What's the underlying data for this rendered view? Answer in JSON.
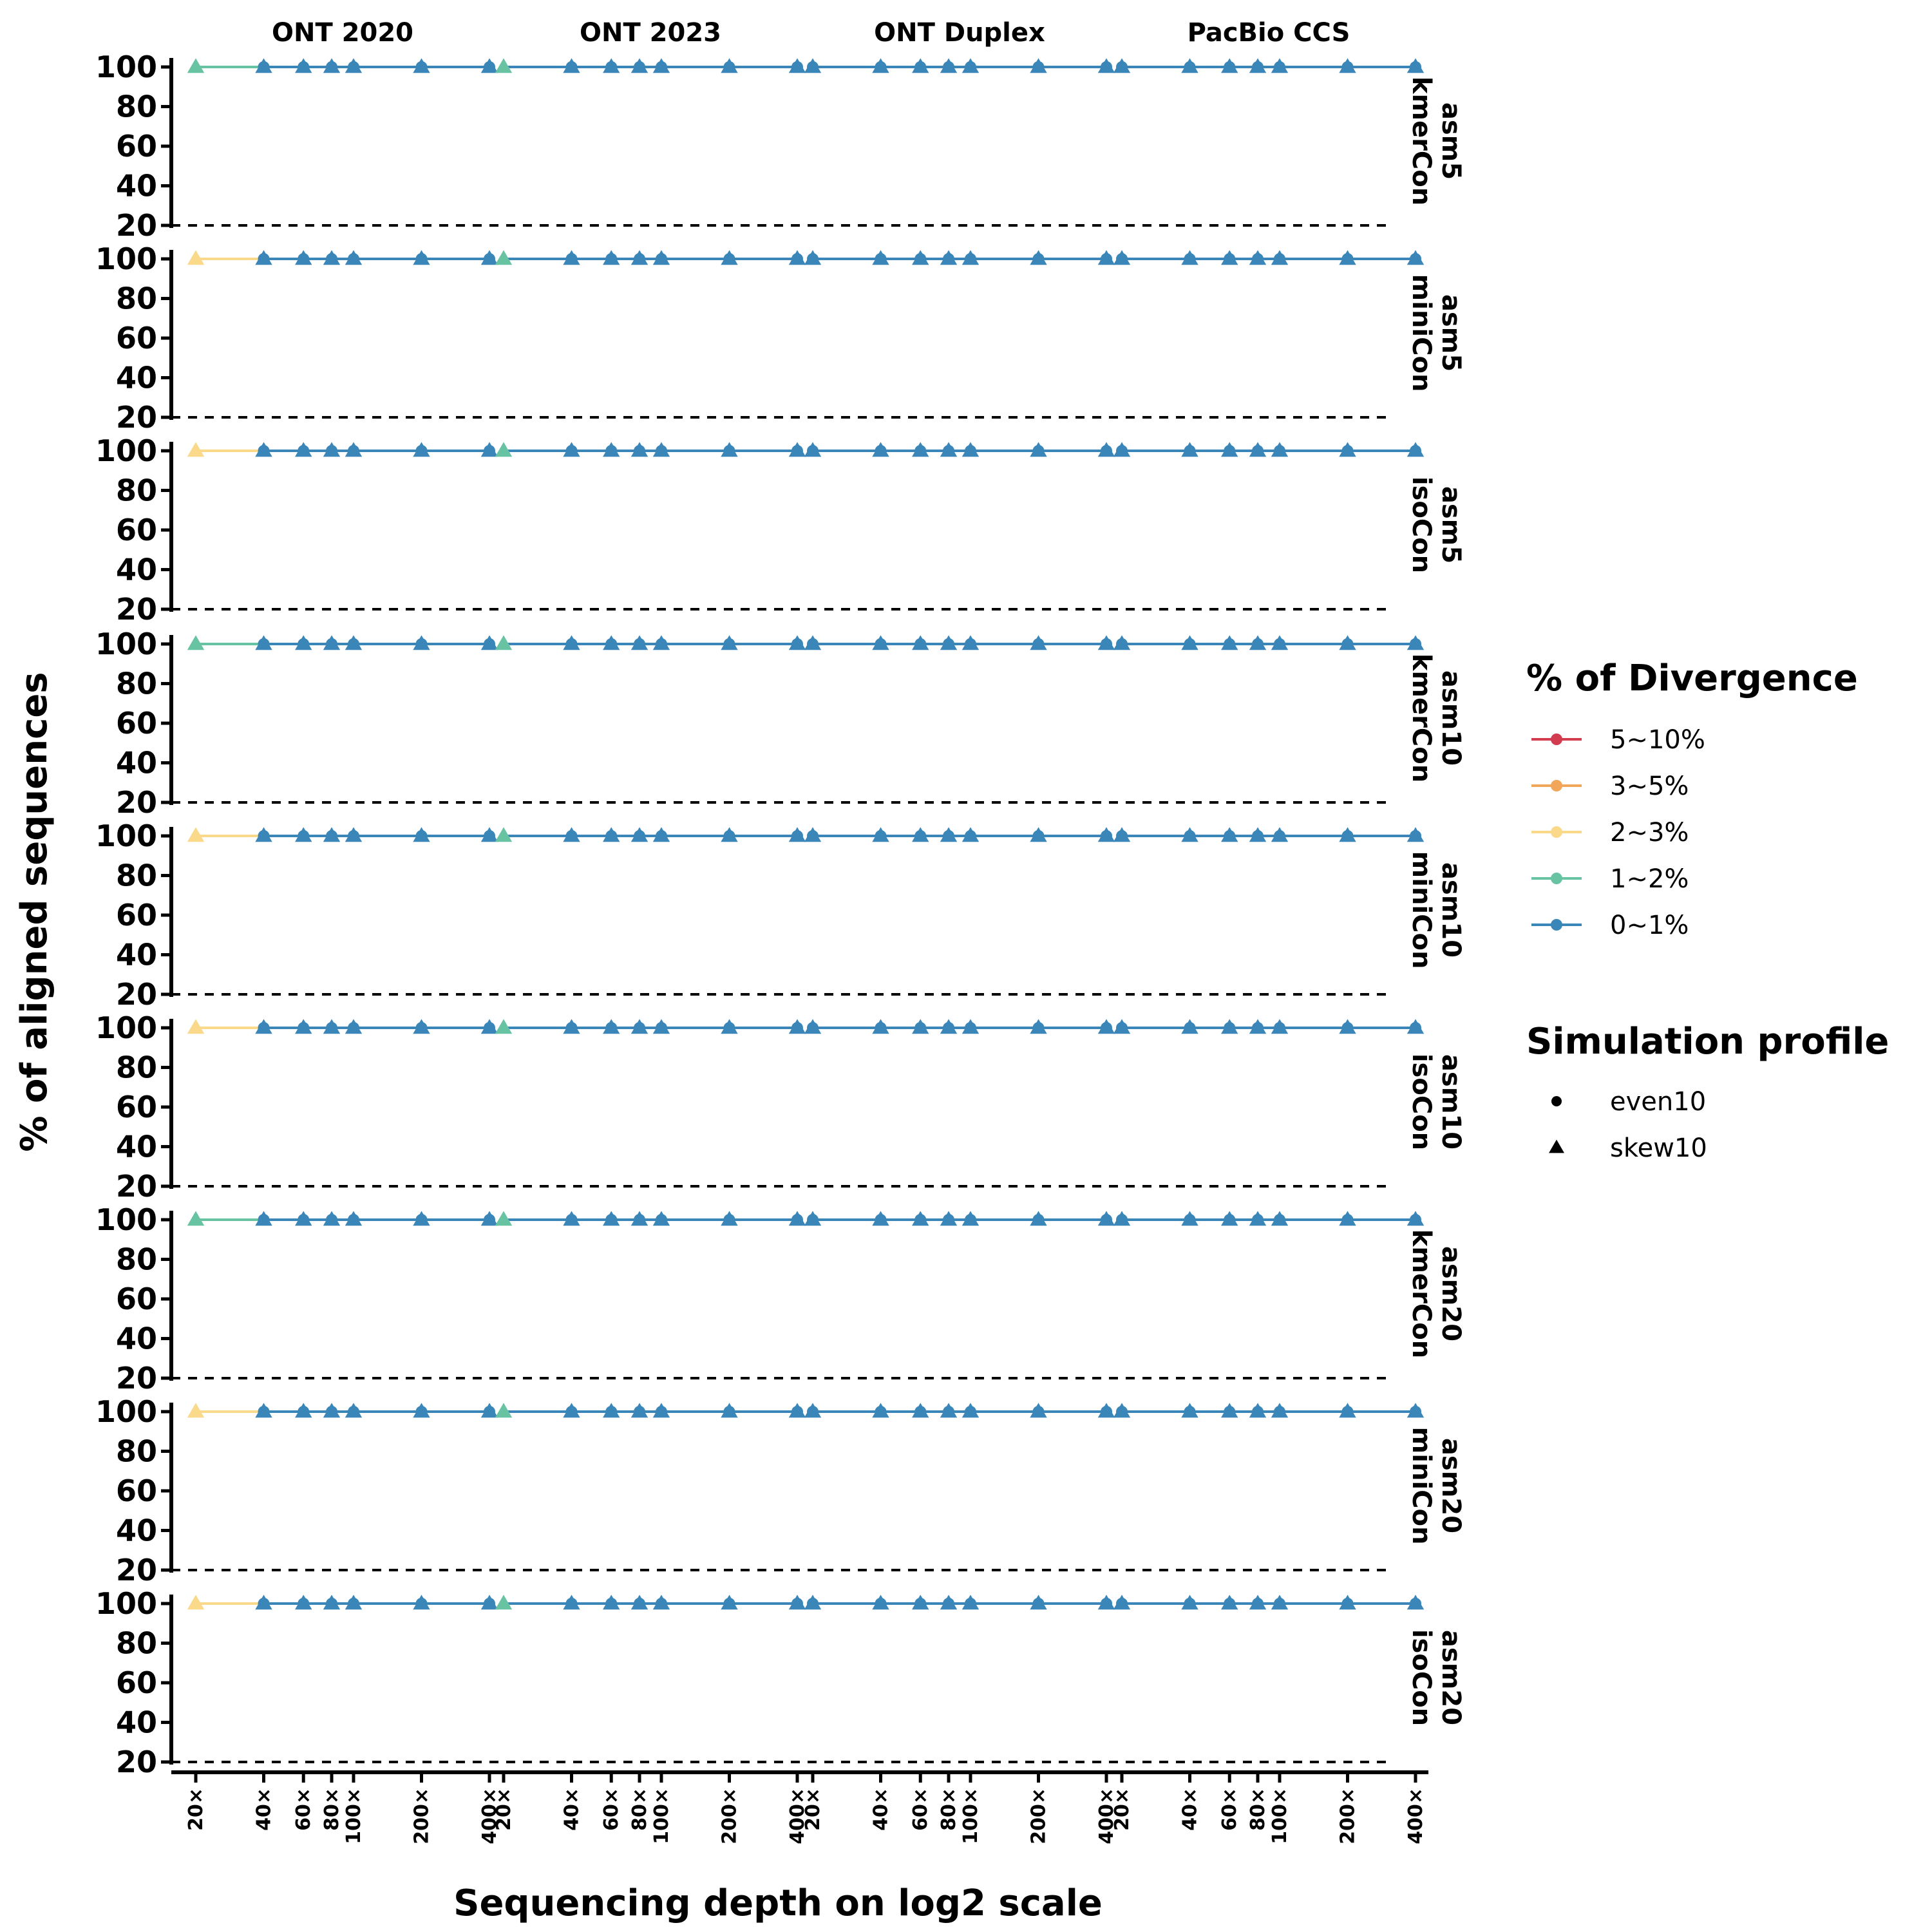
{
  "chart_data": {
    "type": "line",
    "xlabel": "Sequencing depth on log2 scale",
    "ylabel": "% of aligned sequences",
    "x_scale": "log2",
    "x_ticks": [
      20,
      40,
      60,
      80,
      100,
      200,
      400
    ],
    "x_tick_labels": [
      "20×",
      "40×",
      "60×",
      "80×",
      "100×",
      "200×",
      "400×"
    ],
    "y_ticks": [
      20,
      40,
      60,
      80,
      100
    ],
    "ylim": [
      20,
      100
    ],
    "reference_line_y": 20,
    "columns": [
      "ONT 2020",
      "ONT 2023",
      "ONT Duplex",
      "PacBio CCS"
    ],
    "rows": [
      {
        "top": "asm5",
        "bottom": "kmerCon"
      },
      {
        "top": "asm5",
        "bottom": "miniCon"
      },
      {
        "top": "asm5",
        "bottom": "isoCon"
      },
      {
        "top": "asm10",
        "bottom": "kmerCon"
      },
      {
        "top": "asm10",
        "bottom": "miniCon"
      },
      {
        "top": "asm10",
        "bottom": "isoCon"
      },
      {
        "top": "asm20",
        "bottom": "kmerCon"
      },
      {
        "top": "asm20",
        "bottom": "miniCon"
      },
      {
        "top": "asm20",
        "bottom": "isoCon"
      }
    ],
    "divergence_legend": {
      "title": "% of Divergence",
      "entries": [
        {
          "label": "5~10%",
          "color": "#d33b4e"
        },
        {
          "label": "3~5%",
          "color": "#f2a65a"
        },
        {
          "label": "2~3%",
          "color": "#fbd98b"
        },
        {
          "label": "1~2%",
          "color": "#68c3a2"
        },
        {
          "label": "0~1%",
          "color": "#3a86b8"
        }
      ]
    },
    "profile_legend": {
      "title": "Simulation profile",
      "entries": [
        {
          "label": "even10",
          "shape": "circle"
        },
        {
          "label": "skew10",
          "shape": "triangle"
        }
      ]
    },
    "default_series": {
      "divergence": "0~1%",
      "x": [
        20,
        40,
        60,
        80,
        100,
        200,
        400
      ],
      "y": [
        100,
        100,
        100,
        100,
        100,
        100,
        100
      ]
    },
    "low_depth_segments": [
      {
        "row": 0,
        "col": 0,
        "divergence": "1~2%",
        "x": [
          20,
          40
        ],
        "y": [
          100,
          100
        ]
      },
      {
        "row": 1,
        "col": 0,
        "divergence": "2~3%",
        "x": [
          20,
          40
        ],
        "y": [
          100,
          100
        ]
      },
      {
        "row": 2,
        "col": 0,
        "divergence": "2~3%",
        "x": [
          20,
          40
        ],
        "y": [
          100,
          100
        ]
      },
      {
        "row": 3,
        "col": 0,
        "divergence": "1~2%",
        "x": [
          20,
          40
        ],
        "y": [
          100,
          100
        ]
      },
      {
        "row": 4,
        "col": 0,
        "divergence": "2~3%",
        "x": [
          20,
          40
        ],
        "y": [
          100,
          100
        ]
      },
      {
        "row": 5,
        "col": 0,
        "divergence": "2~3%",
        "x": [
          20,
          40
        ],
        "y": [
          100,
          100
        ]
      },
      {
        "row": 6,
        "col": 0,
        "divergence": "1~2%",
        "x": [
          20,
          40
        ],
        "y": [
          100,
          100
        ]
      },
      {
        "row": 7,
        "col": 0,
        "divergence": "2~3%",
        "x": [
          20,
          40
        ],
        "y": [
          100,
          100
        ]
      },
      {
        "row": 8,
        "col": 0,
        "divergence": "2~3%",
        "x": [
          20,
          40
        ],
        "y": [
          100,
          100
        ]
      },
      {
        "row": 0,
        "col": 1,
        "divergence": "1~2%",
        "x": [
          20
        ],
        "y": [
          100
        ]
      },
      {
        "row": 1,
        "col": 1,
        "divergence": "1~2%",
        "x": [
          20
        ],
        "y": [
          100
        ]
      },
      {
        "row": 2,
        "col": 1,
        "divergence": "1~2%",
        "x": [
          20
        ],
        "y": [
          100
        ]
      },
      {
        "row": 3,
        "col": 1,
        "divergence": "1~2%",
        "x": [
          20
        ],
        "y": [
          100
        ]
      },
      {
        "row": 4,
        "col": 1,
        "divergence": "1~2%",
        "x": [
          20
        ],
        "y": [
          100
        ]
      },
      {
        "row": 5,
        "col": 1,
        "divergence": "1~2%",
        "x": [
          20
        ],
        "y": [
          100
        ]
      },
      {
        "row": 6,
        "col": 1,
        "divergence": "1~2%",
        "x": [
          20
        ],
        "y": [
          100
        ]
      },
      {
        "row": 7,
        "col": 1,
        "divergence": "1~2%",
        "x": [
          20
        ],
        "y": [
          100
        ]
      },
      {
        "row": 8,
        "col": 1,
        "divergence": "1~2%",
        "x": [
          20
        ],
        "y": [
          100
        ]
      }
    ]
  }
}
